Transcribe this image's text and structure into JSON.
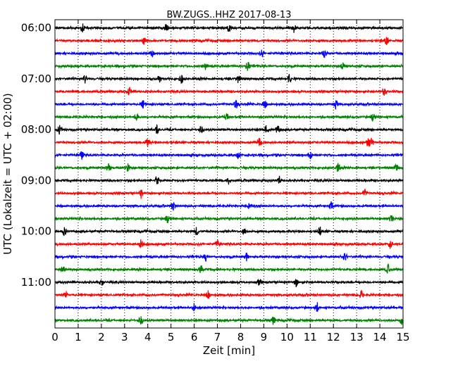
{
  "chart_data": {
    "type": "line",
    "title": "BW.ZUGS..HHZ 2017-08-13",
    "xlabel": "Zeit  [min]",
    "ylabel": "UTC (Lokalzeit = UTC + 02:00)",
    "x_range": [
      0,
      15
    ],
    "x_ticks": [
      "0",
      "1",
      "2",
      "3",
      "4",
      "5",
      "6",
      "7",
      "8",
      "9",
      "10",
      "11",
      "12",
      "13",
      "14",
      "15"
    ],
    "grid": true,
    "time_tick_labels": [
      "06:00",
      "07:00",
      "08:00",
      "09:00",
      "10:00",
      "11:00"
    ],
    "trace_colors": [
      "#000000",
      "#ff0000",
      "#0000ff",
      "#008000"
    ],
    "rows": [
      {
        "start": "06:00",
        "spikes_min": [
          1.2,
          4.8,
          7.5,
          10.3
        ]
      },
      {
        "start": "06:15",
        "spikes_min": [
          3.85,
          14.3
        ]
      },
      {
        "start": "06:30",
        "spikes_min": [
          4.2,
          8.9,
          11.6
        ]
      },
      {
        "start": "06:45",
        "spikes_min": [
          6.5,
          8.3,
          12.4
        ]
      },
      {
        "start": "07:00",
        "spikes_min": [
          1.3,
          4.5,
          5.45,
          7.9,
          10.1
        ]
      },
      {
        "start": "07:15",
        "spikes_min": [
          3.2,
          14.2
        ]
      },
      {
        "start": "07:30",
        "spikes_min": [
          3.8,
          7.8,
          9.05,
          12.1
        ]
      },
      {
        "start": "07:45",
        "spikes_min": [
          3.5,
          7.4,
          13.7
        ]
      },
      {
        "start": "08:00",
        "spikes_min": [
          0.2,
          4.4,
          6.3,
          9.1,
          9.6
        ]
      },
      {
        "start": "08:15",
        "spikes_min": [
          4.0,
          8.8,
          13.5,
          13.65
        ]
      },
      {
        "start": "08:30",
        "spikes_min": [
          1.15,
          7.9,
          11.0
        ]
      },
      {
        "start": "08:45",
        "spikes_min": [
          2.3,
          3.15,
          12.2,
          14.7
        ]
      },
      {
        "start": "09:00",
        "spikes_min": [
          4.4,
          7.5,
          9.7
        ]
      },
      {
        "start": "09:15",
        "spikes_min": [
          3.7,
          13.35
        ]
      },
      {
        "start": "09:30",
        "spikes_min": [
          5.1,
          8.4,
          11.9
        ]
      },
      {
        "start": "09:45",
        "spikes_min": [
          4.85,
          14.5
        ]
      },
      {
        "start": "10:00",
        "spikes_min": [
          0.4,
          6.1,
          8.15,
          11.4
        ]
      },
      {
        "start": "10:15",
        "spikes_min": [
          3.7,
          7.0,
          14.45
        ]
      },
      {
        "start": "10:30",
        "spikes_min": [
          6.5,
          8.25,
          12.5
        ]
      },
      {
        "start": "10:45",
        "spikes_min": [
          0.35,
          6.3,
          14.35
        ]
      },
      {
        "start": "11:00",
        "spikes_min": [
          2.0,
          8.8,
          10.4
        ]
      },
      {
        "start": "11:15",
        "spikes_min": [
          0.45,
          6.6,
          13.2
        ]
      },
      {
        "start": "11:30",
        "spikes_min": [
          6.0,
          11.3
        ]
      },
      {
        "start": "11:45",
        "spikes_min": [
          3.7,
          9.4,
          14.95
        ]
      }
    ]
  }
}
